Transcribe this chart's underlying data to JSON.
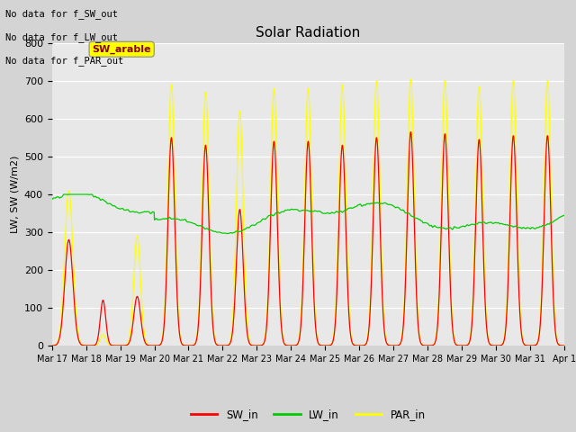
{
  "title": "Solar Radiation",
  "ylabel": "LW, SW (W/m2)",
  "fig_facecolor": "#d8d8d8",
  "plot_facecolor": "#e8e8e8",
  "annotations": [
    "No data for f_SW_out",
    "No data for f_LW_out",
    "No data for f_PAR_out"
  ],
  "legend_label": "SW_arable",
  "legend_entries": [
    "SW_in",
    "LW_in",
    "PAR_in"
  ],
  "colors": {
    "SW_in": "red",
    "LW_in": "lime",
    "PAR_in": "yellow"
  },
  "ylim": [
    0,
    800
  ],
  "yticks": [
    0,
    100,
    200,
    300,
    400,
    500,
    600,
    700,
    800
  ],
  "x_labels": [
    "Mar 17",
    "Mar 18",
    "Mar 19",
    "Mar 20",
    "Mar 21",
    "Mar 22",
    "Mar 23",
    "Mar 24",
    "Mar 25",
    "Mar 26",
    "Mar 27",
    "Mar 28",
    "Mar 29",
    "Mar 30",
    "Mar 31",
    "Apr 1"
  ],
  "n_days": 15,
  "points_per_day": 144
}
